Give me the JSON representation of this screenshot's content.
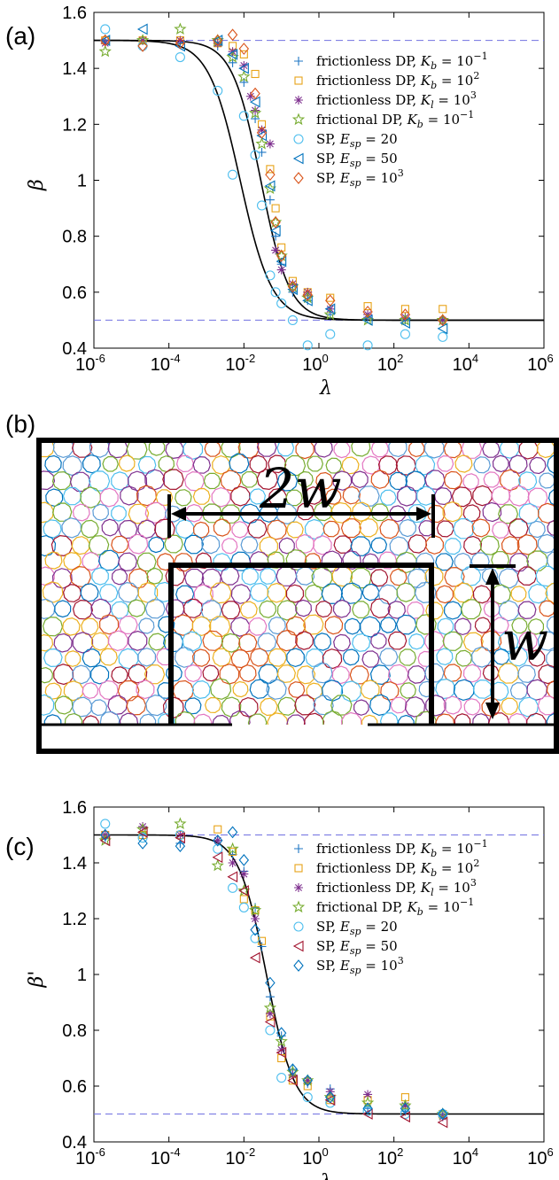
{
  "panels": {
    "a": {
      "label": "(a)"
    },
    "b": {
      "label": "(b)",
      "width_label": "2w",
      "height_label": "w"
    },
    "c": {
      "label": "(c)"
    }
  },
  "colors": {
    "frictionless_kb_small": "#1f77c4",
    "frictionless_kb_large": "#e8a317",
    "frictionless_kl": "#7e2f8e",
    "frictional": "#77ac30",
    "sp_20": "#4dbeee",
    "sp_50_a": "#0072bd",
    "sp_1000_a": "#d95319",
    "sp_50_c": "#a2142f",
    "sp_1000_c": "#0072bd",
    "guide": "#7070e0",
    "fit": "#000000"
  },
  "chart_data": [
    {
      "type": "scatter",
      "panel": "a",
      "xlabel": "λ",
      "ylabel": "β",
      "xscale": "log",
      "xlim": [
        1e-06,
        1000000.0
      ],
      "ylim": [
        0.4,
        1.6
      ],
      "xticks": [
        "10-6",
        "10-4",
        "10-2",
        "100",
        "102",
        "104",
        "106"
      ],
      "yticks": [
        "0.4",
        "0.6",
        "0.8",
        "1",
        "1.2",
        "1.4",
        "1.6"
      ],
      "legend_position": "right",
      "reference_lines": [
        1.5,
        0.5
      ],
      "fit_curves": [
        {
          "center_log10": -2.1,
          "width": 0.42
        },
        {
          "center_log10": -1.55,
          "width": 0.38
        }
      ],
      "series": [
        {
          "name": "frictionless DP, K_b = 10^-1",
          "marker": "plus",
          "color": "#1f77c4",
          "points": [
            [
              2e-06,
              1.5
            ],
            [
              2e-05,
              1.5
            ],
            [
              0.0002,
              1.49
            ],
            [
              0.002,
              1.48
            ],
            [
              0.005,
              1.42
            ],
            [
              0.01,
              1.35
            ],
            [
              0.02,
              1.22
            ],
            [
              0.03,
              1.1
            ],
            [
              0.05,
              0.93
            ],
            [
              0.07,
              0.8
            ],
            [
              0.1,
              0.7
            ],
            [
              0.2,
              0.6
            ],
            [
              0.5,
              0.57
            ],
            [
              2,
              0.52
            ],
            [
              20,
              0.51
            ],
            [
              200,
              0.5
            ],
            [
              2000,
              0.5
            ]
          ]
        },
        {
          "name": "frictionless DP, K_b = 10^2",
          "marker": "square",
          "color": "#e8a317",
          "points": [
            [
              2e-06,
              1.5
            ],
            [
              2e-05,
              1.5
            ],
            [
              0.0002,
              1.5
            ],
            [
              0.002,
              1.49
            ],
            [
              0.005,
              1.48
            ],
            [
              0.01,
              1.45
            ],
            [
              0.02,
              1.38
            ],
            [
              0.03,
              1.2
            ],
            [
              0.05,
              1.04
            ],
            [
              0.07,
              0.9
            ],
            [
              0.1,
              0.76
            ],
            [
              0.2,
              0.64
            ],
            [
              0.5,
              0.6
            ],
            [
              2,
              0.58
            ],
            [
              20,
              0.55
            ],
            [
              200,
              0.54
            ],
            [
              2000,
              0.54
            ]
          ]
        },
        {
          "name": "frictionless DP, K_l = 10^3",
          "marker": "asterisk",
          "color": "#7e2f8e",
          "points": [
            [
              2e-06,
              1.49
            ],
            [
              2e-05,
              1.5
            ],
            [
              0.0002,
              1.5
            ],
            [
              0.002,
              1.49
            ],
            [
              0.005,
              1.46
            ],
            [
              0.01,
              1.41
            ],
            [
              0.015,
              1.3
            ],
            [
              0.02,
              1.25
            ],
            [
              0.03,
              1.18
            ],
            [
              0.05,
              1.13
            ],
            [
              0.07,
              0.75
            ],
            [
              0.1,
              0.68
            ],
            [
              0.2,
              0.63
            ],
            [
              0.5,
              0.6
            ],
            [
              2,
              0.54
            ],
            [
              20,
              0.52
            ],
            [
              200,
              0.51
            ],
            [
              2000,
              0.5
            ]
          ]
        },
        {
          "name": "frictional DP, K_b = 10^-1",
          "marker": "star",
          "color": "#77ac30",
          "points": [
            [
              2e-06,
              1.46
            ],
            [
              2e-05,
              1.5
            ],
            [
              0.0002,
              1.54
            ],
            [
              0.002,
              1.5
            ],
            [
              0.005,
              1.44
            ],
            [
              0.01,
              1.37
            ],
            [
              0.02,
              1.24
            ],
            [
              0.03,
              1.13
            ],
            [
              0.05,
              0.97
            ],
            [
              0.07,
              0.85
            ],
            [
              0.1,
              0.73
            ],
            [
              0.2,
              0.62
            ],
            [
              0.5,
              0.58
            ],
            [
              2,
              0.52
            ],
            [
              20,
              0.5
            ],
            [
              200,
              0.5
            ],
            [
              2000,
              0.5
            ]
          ]
        },
        {
          "name": "SP, E_sp = 20",
          "marker": "circle",
          "color": "#4dbeee",
          "points": [
            [
              2e-06,
              1.54
            ],
            [
              2e-05,
              1.48
            ],
            [
              0.0002,
              1.44
            ],
            [
              0.002,
              1.32
            ],
            [
              0.005,
              1.02
            ],
            [
              0.01,
              1.23
            ],
            [
              0.02,
              1.09
            ],
            [
              0.03,
              0.91
            ],
            [
              0.05,
              0.66
            ],
            [
              0.07,
              0.6
            ],
            [
              0.1,
              0.56
            ],
            [
              0.2,
              0.5
            ],
            [
              0.5,
              0.41
            ],
            [
              2,
              0.45
            ],
            [
              20,
              0.41
            ],
            [
              200,
              0.45
            ],
            [
              2000,
              0.44
            ]
          ]
        },
        {
          "name": "SP, E_sp = 50",
          "marker": "triangle-left",
          "color": "#0072bd",
          "points": [
            [
              2e-06,
              1.5
            ],
            [
              2e-05,
              1.54
            ],
            [
              0.0002,
              1.48
            ],
            [
              0.002,
              1.5
            ],
            [
              0.005,
              1.45
            ],
            [
              0.01,
              1.4
            ],
            [
              0.02,
              1.28
            ],
            [
              0.03,
              1.16
            ],
            [
              0.05,
              0.98
            ],
            [
              0.07,
              0.82
            ],
            [
              0.1,
              0.71
            ],
            [
              0.2,
              0.61
            ],
            [
              0.5,
              0.57
            ],
            [
              2,
              0.54
            ],
            [
              20,
              0.5
            ],
            [
              200,
              0.49
            ],
            [
              2000,
              0.47
            ]
          ]
        },
        {
          "name": "SP, E_sp = 10^3",
          "marker": "diamond",
          "color": "#d95319",
          "points": [
            [
              2e-06,
              1.5
            ],
            [
              2e-05,
              1.48
            ],
            [
              0.0002,
              1.49
            ],
            [
              0.002,
              1.5
            ],
            [
              0.005,
              1.52
            ],
            [
              0.01,
              1.47
            ],
            [
              0.02,
              1.31
            ],
            [
              0.03,
              1.17
            ],
            [
              0.05,
              1.02
            ],
            [
              0.07,
              0.85
            ],
            [
              0.1,
              0.73
            ],
            [
              0.2,
              0.62
            ],
            [
              0.5,
              0.59
            ],
            [
              2,
              0.57
            ],
            [
              20,
              0.53
            ],
            [
              200,
              0.52
            ],
            [
              2000,
              0.5
            ]
          ]
        }
      ]
    },
    {
      "type": "scatter",
      "panel": "c",
      "xlabel": "λ",
      "ylabel": "β'",
      "xscale": "log",
      "xlim": [
        1e-06,
        1000000.0
      ],
      "ylim": [
        0.4,
        1.6
      ],
      "xticks": [
        "10-6",
        "10-4",
        "10-2",
        "100",
        "102",
        "104",
        "106"
      ],
      "yticks": [
        "0.4",
        "0.6",
        "0.8",
        "1",
        "1.2",
        "1.4",
        "1.6"
      ],
      "legend_position": "right",
      "reference_lines": [
        1.5,
        0.5
      ],
      "fit_curves": [
        {
          "center_log10": -1.4,
          "width": 0.37
        }
      ],
      "series": [
        {
          "name": "frictionless DP, K_b = 10^-1",
          "marker": "plus",
          "color": "#1f77c4",
          "points": [
            [
              2e-06,
              1.49
            ],
            [
              2e-05,
              1.5
            ],
            [
              0.0002,
              1.47
            ],
            [
              0.002,
              1.48
            ],
            [
              0.005,
              1.43
            ],
            [
              0.01,
              1.37
            ],
            [
              0.02,
              1.24
            ],
            [
              0.03,
              1.1
            ],
            [
              0.05,
              0.92
            ],
            [
              0.1,
              0.78
            ],
            [
              0.2,
              0.66
            ],
            [
              0.5,
              0.61
            ],
            [
              2,
              0.59
            ],
            [
              20,
              0.52
            ],
            [
              200,
              0.51
            ],
            [
              2000,
              0.5
            ]
          ]
        },
        {
          "name": "frictionless DP, K_b = 10^2",
          "marker": "square",
          "color": "#e8a317",
          "points": [
            [
              2e-06,
              1.5
            ],
            [
              2e-05,
              1.5
            ],
            [
              0.0002,
              1.5
            ],
            [
              0.002,
              1.52
            ],
            [
              0.005,
              1.44
            ],
            [
              0.01,
              1.27
            ],
            [
              0.02,
              1.23
            ],
            [
              0.03,
              1.12
            ],
            [
              0.05,
              0.85
            ],
            [
              0.1,
              0.7
            ],
            [
              0.2,
              0.62
            ],
            [
              0.5,
              0.6
            ],
            [
              2,
              0.55
            ],
            [
              20,
              0.55
            ],
            [
              200,
              0.56
            ],
            [
              2000,
              0.5
            ]
          ]
        },
        {
          "name": "frictionless DP, K_l = 10^3",
          "marker": "asterisk",
          "color": "#7e2f8e",
          "points": [
            [
              2e-06,
              1.5
            ],
            [
              2e-05,
              1.53
            ],
            [
              0.0002,
              1.5
            ],
            [
              0.002,
              1.48
            ],
            [
              0.005,
              1.4
            ],
            [
              0.01,
              1.36
            ],
            [
              0.02,
              1.2
            ],
            [
              0.05,
              0.86
            ],
            [
              0.1,
              0.73
            ],
            [
              0.2,
              0.64
            ],
            [
              0.5,
              0.62
            ],
            [
              2,
              0.58
            ],
            [
              20,
              0.57
            ],
            [
              200,
              0.53
            ],
            [
              2000,
              0.49
            ]
          ]
        },
        {
          "name": "frictional DP, K_b = 10^-1",
          "marker": "star",
          "color": "#77ac30",
          "points": [
            [
              2e-06,
              1.48
            ],
            [
              2e-05,
              1.52
            ],
            [
              0.0002,
              1.54
            ],
            [
              0.002,
              1.39
            ],
            [
              0.005,
              1.45
            ],
            [
              0.01,
              1.3
            ],
            [
              0.02,
              1.23
            ],
            [
              0.05,
              0.88
            ],
            [
              0.1,
              0.76
            ],
            [
              0.2,
              0.65
            ],
            [
              0.5,
              0.62
            ],
            [
              2,
              0.56
            ],
            [
              20,
              0.54
            ],
            [
              200,
              0.53
            ],
            [
              2000,
              0.5
            ]
          ]
        },
        {
          "name": "SP, E_sp = 20",
          "marker": "circle",
          "color": "#4dbeee",
          "points": [
            [
              2e-06,
              1.54
            ],
            [
              2e-05,
              1.49
            ],
            [
              0.0002,
              1.5
            ],
            [
              0.002,
              1.45
            ],
            [
              0.005,
              1.31
            ],
            [
              0.01,
              1.24
            ],
            [
              0.02,
              1.13
            ],
            [
              0.05,
              0.8
            ],
            [
              0.1,
              0.63
            ],
            [
              0.5,
              0.56
            ],
            [
              2,
              0.54
            ],
            [
              20,
              0.51
            ],
            [
              200,
              0.5
            ],
            [
              2000,
              0.5
            ]
          ]
        },
        {
          "name": "SP, E_sp = 50",
          "marker": "triangle-left",
          "color": "#a2142f",
          "points": [
            [
              2e-06,
              1.48
            ],
            [
              2e-05,
              1.51
            ],
            [
              0.0002,
              1.49
            ],
            [
              0.002,
              1.42
            ],
            [
              0.005,
              1.35
            ],
            [
              0.01,
              1.3
            ],
            [
              0.02,
              1.06
            ],
            [
              0.05,
              0.83
            ],
            [
              0.1,
              0.72
            ],
            [
              0.2,
              0.62
            ],
            [
              2,
              0.55
            ],
            [
              20,
              0.5
            ],
            [
              200,
              0.49
            ],
            [
              2000,
              0.47
            ]
          ]
        },
        {
          "name": "SP, E_sp = 10^3",
          "marker": "diamond",
          "color": "#0072bd",
          "points": [
            [
              2e-06,
              1.5
            ],
            [
              2e-05,
              1.47
            ],
            [
              0.0002,
              1.46
            ],
            [
              0.002,
              1.48
            ],
            [
              0.005,
              1.51
            ],
            [
              0.01,
              1.41
            ],
            [
              0.02,
              1.16
            ],
            [
              0.05,
              0.97
            ],
            [
              0.1,
              0.79
            ],
            [
              0.2,
              0.66
            ],
            [
              0.5,
              0.62
            ],
            [
              2,
              0.56
            ],
            [
              20,
              0.52
            ],
            [
              200,
              0.52
            ],
            [
              2000,
              0.5
            ]
          ]
        }
      ]
    }
  ]
}
